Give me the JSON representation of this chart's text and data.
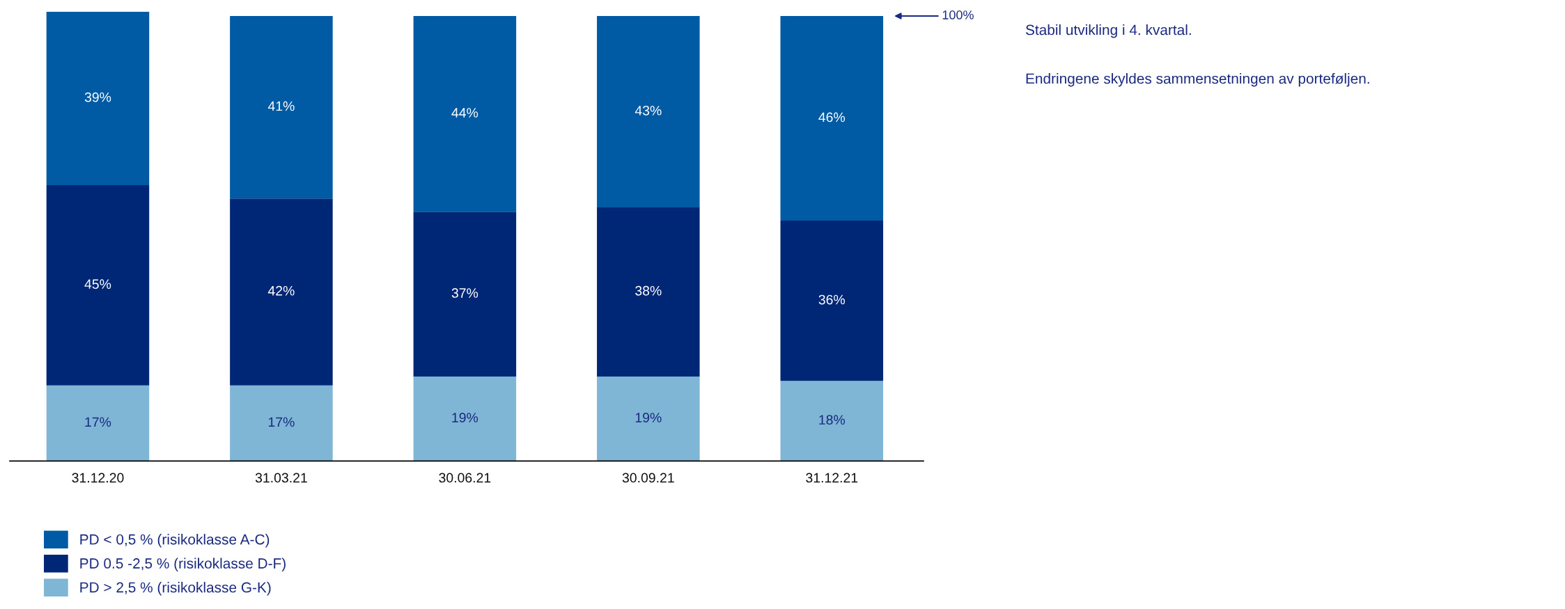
{
  "chart_data": {
    "type": "bar",
    "stacked": true,
    "legend": "bottom left",
    "categories": [
      "31.12.20",
      "31.03.21",
      "30.06.21",
      "30.09.21",
      "31.12.21"
    ],
    "series": [
      {
        "name": "PD > 2,5 % (risikoklasse G-K)",
        "color": "#7fb5d5",
        "values": [
          17,
          17,
          19,
          19,
          18
        ],
        "value_labels": [
          "17%",
          "17%",
          "19%",
          "19%",
          "18%"
        ]
      },
      {
        "name": "PD 0.5 -2,5 % (risikoklasse D-F)",
        "color": "#002776",
        "values": [
          45,
          42,
          37,
          38,
          36
        ],
        "value_labels": [
          "45%",
          "42%",
          "37%",
          "38%",
          "36%"
        ]
      },
      {
        "name": "PD < 0,5 % (risikoklasse A-C)",
        "color": "#005aa4",
        "values": [
          39,
          41,
          44,
          43,
          46
        ],
        "value_labels": [
          "39%",
          "41%",
          "44%",
          "43%",
          "46%"
        ]
      }
    ],
    "annotations": [
      "100%",
      "Stabil utvikling i 4. kvartal.",
      "Endringene skyldes sammensetningen av porteføljen."
    ]
  }
}
